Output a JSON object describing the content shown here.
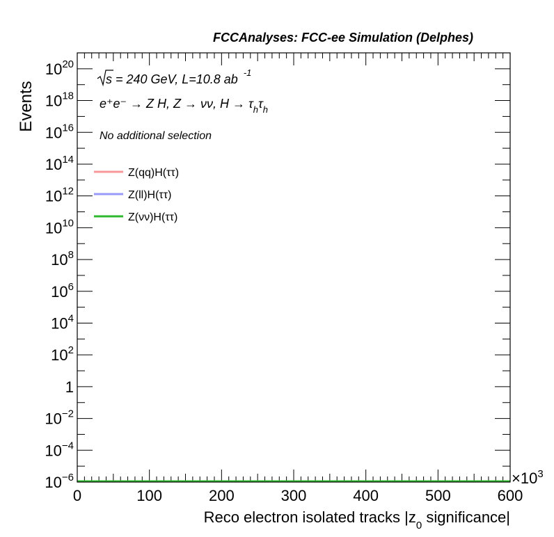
{
  "chart_data": {
    "type": "line",
    "header": "FCCAnalyses: FCC-ee Simulation (Delphes)",
    "xlabel_main": "Reco electron isolated tracks |z",
    "xlabel_sub": "0",
    "xlabel_tail": " significance|",
    "ylabel": "Events",
    "x_multiplier": "×10",
    "x_multiplier_exp": "3",
    "xlim": [
      0,
      600
    ],
    "ylim_log10": [
      -6,
      21
    ],
    "log_y": true,
    "x_ticks": [
      "0",
      "100",
      "200",
      "300",
      "400",
      "500",
      "600"
    ],
    "y_ticks": [
      {
        "log": 20,
        "base": "10",
        "exp": "20"
      },
      {
        "log": 18,
        "base": "10",
        "exp": "18"
      },
      {
        "log": 16,
        "base": "10",
        "exp": "16"
      },
      {
        "log": 14,
        "base": "10",
        "exp": "14"
      },
      {
        "log": 12,
        "base": "10",
        "exp": "12"
      },
      {
        "log": 10,
        "base": "10",
        "exp": "10"
      },
      {
        "log": 8,
        "base": "10",
        "exp": "8"
      },
      {
        "log": 6,
        "base": "10",
        "exp": "6"
      },
      {
        "log": 4,
        "base": "10",
        "exp": "4"
      },
      {
        "log": 2,
        "base": "10",
        "exp": "2"
      },
      {
        "log": 0,
        "base": "1",
        "exp": ""
      },
      {
        "log": -2,
        "base": "10",
        "exp": "−2"
      },
      {
        "log": -4,
        "base": "10",
        "exp": "−4"
      },
      {
        "log": -6,
        "base": "10",
        "exp": "−6"
      }
    ],
    "annotations": {
      "energy_sqrt": "s",
      "energy_rest": " = 240 GeV, L=10.8 ab",
      "energy_exp": "-1",
      "process": "e⁺e⁻ → Z H, Z → νν, H → τ",
      "process_h1": "h",
      "process_tau2": "τ",
      "process_h2": "h",
      "selection": "No additional selection"
    },
    "legend_position": "top-left",
    "series": [
      {
        "name": "Z(qq)H(ττ)",
        "color": "#f79999",
        "x": [
          0,
          600
        ],
        "y": [
          1e-06,
          1e-06
        ]
      },
      {
        "name": "Z(ll)H(ττ)",
        "color": "#9999f7",
        "x": [
          0,
          600
        ],
        "y": [
          1e-06,
          1e-06
        ]
      },
      {
        "name": "Z(νν)H(ττ)",
        "color": "#2eb82e",
        "x": [
          0,
          600
        ],
        "y": [
          1e-06,
          1e-06
        ]
      }
    ]
  }
}
